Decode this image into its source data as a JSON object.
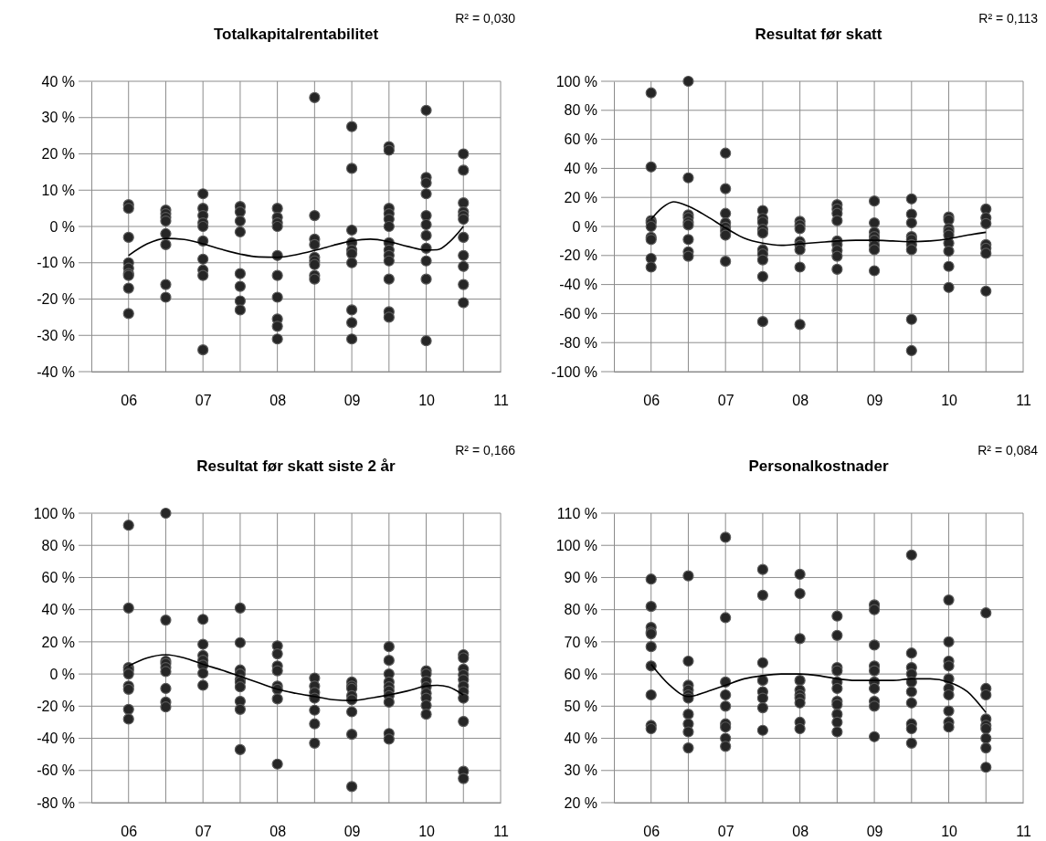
{
  "chart_data": [
    {
      "type": "scatter",
      "title": "Totalkapitalrentabilitet",
      "annotations": [
        "R² = 0,030"
      ],
      "xlim": [
        5.5,
        11
      ],
      "xticks": [
        {
          "value": 6,
          "label": "06"
        },
        {
          "value": 6.5,
          "label": null
        },
        {
          "value": 7,
          "label": "07"
        },
        {
          "value": 7.5,
          "label": null
        },
        {
          "value": 8,
          "label": "08"
        },
        {
          "value": 8.5,
          "label": null
        },
        {
          "value": 9,
          "label": "09"
        },
        {
          "value": 9.5,
          "label": null
        },
        {
          "value": 10,
          "label": "10"
        },
        {
          "value": 10.5,
          "label": null
        },
        {
          "value": 11,
          "label": "11"
        }
      ],
      "ylim": [
        -40,
        40
      ],
      "yticks": [
        {
          "value": -40,
          "label": "-40 %"
        },
        {
          "value": -30,
          "label": "-30 %"
        },
        {
          "value": -20,
          "label": "-20 %"
        },
        {
          "value": -10,
          "label": "-10 %"
        },
        {
          "value": 0,
          "label": "0 %"
        },
        {
          "value": 10,
          "label": "10 %"
        },
        {
          "value": 20,
          "label": "20 %"
        },
        {
          "value": 30,
          "label": "30 %"
        },
        {
          "value": 40,
          "label": "40 %"
        }
      ],
      "grid": true,
      "series": [
        {
          "marker": "circle",
          "color": "#262626",
          "x": [
            6,
            6,
            6,
            6,
            6,
            6,
            6,
            6,
            6,
            6.5,
            6.5,
            6.5,
            6.5,
            6.5,
            6.5,
            6.5,
            6.5,
            7,
            7,
            7,
            7,
            7,
            7,
            7,
            7,
            7,
            7,
            7.5,
            7.5,
            7.5,
            7.5,
            7.5,
            7.5,
            7.5,
            7.5,
            8,
            8,
            8,
            8,
            8,
            8,
            8,
            8,
            8,
            8,
            8.5,
            8.5,
            8.5,
            8.5,
            8.5,
            8.5,
            8.5,
            8.5,
            8.5,
            9,
            9,
            9,
            9,
            9,
            9,
            9,
            9,
            9,
            9,
            9.5,
            9.5,
            9.5,
            9.5,
            9.5,
            9.5,
            9.5,
            9.5,
            9.5,
            9.5,
            9.5,
            9.5,
            9.5,
            10,
            10,
            10,
            10,
            10,
            10,
            10,
            10,
            10,
            10,
            10,
            10.5,
            10.5,
            10.5,
            10.5,
            10.5,
            10.5,
            10.5,
            10.5,
            10.5,
            10.5,
            10.5
          ],
          "values": [
            6,
            5,
            -3,
            -10,
            -11.5,
            -13,
            -13.5,
            -17,
            -24,
            4.5,
            3.5,
            2.5,
            1.5,
            -2,
            -5,
            -16,
            -19.5,
            9,
            5,
            3,
            1,
            0,
            -4,
            -9,
            -12,
            -13.5,
            -34,
            5.5,
            4,
            1.5,
            -1.5,
            -13,
            -16.5,
            -20.5,
            -23,
            5,
            2.5,
            1,
            0,
            -8,
            -13.5,
            -19.5,
            -25.5,
            -27.5,
            -31,
            35.5,
            3,
            -3.5,
            -5,
            -8.5,
            -9.5,
            -10.5,
            -13.5,
            -14.5,
            27.5,
            16,
            -1,
            -4.5,
            -6.5,
            -7.5,
            -10,
            -23,
            -26.5,
            -31,
            22,
            21,
            5,
            3.5,
            2,
            0,
            -4.5,
            -6.5,
            -8,
            -9.5,
            -14.5,
            -23.5,
            -25,
            32,
            13.5,
            12,
            9,
            3,
            0.5,
            -2.5,
            -6,
            -9.5,
            -14.5,
            -31.5,
            20,
            15.5,
            6.5,
            4,
            3,
            2,
            -3,
            -8,
            -11,
            -16,
            -21
          ]
        },
        {
          "type": "line",
          "color": "#000000",
          "line_style": "solid",
          "x": [
            6,
            6.25,
            6.5,
            6.75,
            7,
            7.25,
            7.5,
            7.75,
            8,
            8.25,
            8.5,
            8.75,
            9,
            9.25,
            9.5,
            9.75,
            10,
            10.15,
            10.3,
            10.5
          ],
          "values": [
            -8,
            -4.8,
            -3.3,
            -3.6,
            -4.8,
            -6.3,
            -7.6,
            -8.4,
            -8.5,
            -7.8,
            -6.6,
            -5.2,
            -4,
            -3.5,
            -4.2,
            -5.5,
            -6.5,
            -6.4,
            -4.5,
            0
          ]
        }
      ]
    },
    {
      "type": "scatter",
      "title": "Resultat før skatt",
      "annotations": [
        "R² = 0,113"
      ],
      "xlim": [
        5.5,
        11
      ],
      "xticks": [
        {
          "value": 6,
          "label": "06"
        },
        {
          "value": 6.5,
          "label": null
        },
        {
          "value": 7,
          "label": "07"
        },
        {
          "value": 7.5,
          "label": null
        },
        {
          "value": 8,
          "label": "08"
        },
        {
          "value": 8.5,
          "label": null
        },
        {
          "value": 9,
          "label": "09"
        },
        {
          "value": 9.5,
          "label": null
        },
        {
          "value": 10,
          "label": "10"
        },
        {
          "value": 10.5,
          "label": null
        },
        {
          "value": 11,
          "label": "11"
        }
      ],
      "ylim": [
        -100,
        100
      ],
      "yticks": [
        {
          "value": -100,
          "label": "-100 %"
        },
        {
          "value": -80,
          "label": "-80 %"
        },
        {
          "value": -60,
          "label": "-60 %"
        },
        {
          "value": -40,
          "label": "-40 %"
        },
        {
          "value": -20,
          "label": "-20 %"
        },
        {
          "value": 0,
          "label": "0 %"
        },
        {
          "value": 20,
          "label": "20 %"
        },
        {
          "value": 40,
          "label": "40 %"
        },
        {
          "value": 60,
          "label": "60 %"
        },
        {
          "value": 80,
          "label": "80 %"
        },
        {
          "value": 100,
          "label": "100 %"
        }
      ],
      "grid": true,
      "series": [
        {
          "marker": "circle",
          "color": "#262626",
          "x": [
            6,
            6,
            6,
            6,
            6,
            6,
            6,
            6,
            6,
            6.5,
            6.5,
            6.5,
            6.5,
            6.5,
            6.5,
            6.5,
            6.5,
            6.5,
            7,
            7,
            7,
            7,
            7,
            7,
            7,
            7,
            7.5,
            7.5,
            7.5,
            7.5,
            7.5,
            7.5,
            7.5,
            7.5,
            7.5,
            7.5,
            8,
            8,
            8,
            8,
            8,
            8,
            8,
            8,
            8.5,
            8.5,
            8.5,
            8.5,
            8.5,
            8.5,
            8.5,
            8.5,
            8.5,
            9,
            9,
            9,
            9,
            9,
            9,
            9,
            9,
            9.5,
            9.5,
            9.5,
            9.5,
            9.5,
            9.5,
            9.5,
            9.5,
            9.5,
            10,
            10,
            10,
            10,
            10,
            10,
            10,
            10,
            10,
            10.5,
            10.5,
            10.5,
            10.5,
            10.5,
            10.5,
            10.5
          ],
          "values": [
            92,
            41,
            4,
            2.5,
            0,
            -7.5,
            -9,
            -22,
            -28,
            100,
            33.5,
            8,
            6,
            3,
            1,
            -9,
            -17.5,
            -20.5,
            50.5,
            26,
            9,
            2.5,
            -0.5,
            -3,
            -6,
            -24,
            11,
            5.5,
            3,
            -2,
            -4.5,
            -16,
            -19,
            -23,
            -34.5,
            -65.5,
            3.5,
            1,
            -1.5,
            -10.5,
            -13,
            -16,
            -28,
            -67.5,
            15,
            12,
            9,
            4,
            -10,
            -12.5,
            -16.5,
            -20.5,
            -29.5,
            17.5,
            2.5,
            -4,
            -7,
            -9.5,
            -13,
            -16,
            -30.5,
            19,
            8.5,
            2.5,
            -7,
            -9,
            -12.5,
            -16,
            -64,
            -85.5,
            6.5,
            4.5,
            -1.5,
            -3.5,
            -6,
            -11.5,
            -17,
            -27.5,
            -42,
            12,
            6,
            2,
            -12.5,
            -15,
            -18.5,
            -44.5
          ]
        },
        {
          "type": "line",
          "color": "#000000",
          "line_style": "solid",
          "x": [
            6,
            6.15,
            6.3,
            6.5,
            6.75,
            7,
            7.25,
            7.5,
            7.75,
            8,
            8.25,
            8.5,
            8.75,
            9,
            9.25,
            9.5,
            9.75,
            10,
            10.25,
            10.5
          ],
          "values": [
            5,
            13,
            17,
            14,
            7,
            -1,
            -8,
            -11.5,
            -13,
            -12,
            -11,
            -10,
            -9.5,
            -9.5,
            -10,
            -10.5,
            -10,
            -8.5,
            -6,
            -4
          ]
        }
      ]
    },
    {
      "type": "scatter",
      "title": "Resultat før skatt siste 2 år",
      "annotations": [
        "R² = 0,166"
      ],
      "xlim": [
        5.5,
        11
      ],
      "xticks": [
        {
          "value": 6,
          "label": "06"
        },
        {
          "value": 6.5,
          "label": null
        },
        {
          "value": 7,
          "label": "07"
        },
        {
          "value": 7.5,
          "label": null
        },
        {
          "value": 8,
          "label": "08"
        },
        {
          "value": 8.5,
          "label": null
        },
        {
          "value": 9,
          "label": "09"
        },
        {
          "value": 9.5,
          "label": null
        },
        {
          "value": 10,
          "label": "10"
        },
        {
          "value": 10.5,
          "label": null
        },
        {
          "value": 11,
          "label": "11"
        }
      ],
      "ylim": [
        -80,
        100
      ],
      "yticks": [
        {
          "value": -80,
          "label": "-80 %"
        },
        {
          "value": -60,
          "label": "-60 %"
        },
        {
          "value": -40,
          "label": "-40 %"
        },
        {
          "value": -20,
          "label": "-20 %"
        },
        {
          "value": 0,
          "label": "0 %"
        },
        {
          "value": 20,
          "label": "20 %"
        },
        {
          "value": 40,
          "label": "40 %"
        },
        {
          "value": 60,
          "label": "60 %"
        },
        {
          "value": 80,
          "label": "80 %"
        },
        {
          "value": 100,
          "label": "100 %"
        }
      ],
      "grid": true,
      "series": [
        {
          "marker": "circle",
          "color": "#262626",
          "x": [
            6,
            6,
            6,
            6,
            6,
            6,
            6,
            6,
            6,
            6.5,
            6.5,
            6.5,
            6.5,
            6.5,
            6.5,
            6.5,
            6.5,
            6.5,
            7,
            7,
            7,
            7,
            7,
            7,
            7,
            7.5,
            7.5,
            7.5,
            7.5,
            7.5,
            7.5,
            7.5,
            7.5,
            7.5,
            7.5,
            8,
            8,
            8,
            8,
            8,
            8,
            8,
            8,
            8.5,
            8.5,
            8.5,
            8.5,
            8.5,
            8.5,
            8.5,
            9,
            9,
            9,
            9,
            9,
            9,
            9,
            9,
            9.5,
            9.5,
            9.5,
            9.5,
            9.5,
            9.5,
            9.5,
            9.5,
            9.5,
            9.5,
            10,
            10,
            10,
            10,
            10,
            10,
            10,
            10,
            10.5,
            10.5,
            10.5,
            10.5,
            10.5,
            10.5,
            10.5,
            10.5,
            10.5,
            10.5,
            10.5
          ],
          "values": [
            92.5,
            41,
            4,
            2.5,
            0,
            -7.5,
            -9.5,
            -22,
            -28,
            100,
            33.5,
            8,
            6.5,
            4,
            1.5,
            -9,
            -17.5,
            -20.5,
            34,
            18.5,
            11.5,
            8.5,
            5.5,
            0.5,
            -7,
            41,
            19.5,
            2.5,
            0,
            -3.5,
            -5,
            -8,
            -17,
            -22,
            -47,
            17.5,
            12.5,
            5,
            2,
            -7.5,
            -9.5,
            -15.5,
            -56,
            -2.5,
            -7.5,
            -11.5,
            -15,
            -22.5,
            -31,
            -43,
            -5,
            -7.5,
            -9,
            -13.5,
            -16,
            -23.5,
            -37.5,
            -70,
            17,
            8.5,
            0,
            -5,
            -8,
            -10.5,
            -13.5,
            -17.5,
            -37,
            -40.5,
            2,
            0,
            -4.5,
            -8,
            -12,
            -15,
            -19.5,
            -25,
            12,
            10,
            3,
            -0.5,
            -3.5,
            -7.5,
            -11,
            -15,
            -29.5,
            -60.5,
            -65
          ]
        },
        {
          "type": "line",
          "color": "#000000",
          "line_style": "solid",
          "x": [
            6,
            6.25,
            6.5,
            6.75,
            7,
            7.25,
            7.5,
            7.75,
            8,
            8.25,
            8.5,
            8.75,
            9,
            9.25,
            9.5,
            9.75,
            10,
            10.15,
            10.3,
            10.5
          ],
          "values": [
            5,
            10,
            12,
            10,
            6,
            2.5,
            -1.5,
            -5.5,
            -9.5,
            -12,
            -14,
            -16,
            -16.5,
            -15,
            -13,
            -10.5,
            -7.5,
            -7,
            -8,
            -13
          ]
        }
      ]
    },
    {
      "type": "scatter",
      "title": "Personalkostnader",
      "annotations": [
        "R² = 0,084"
      ],
      "xlim": [
        5.5,
        11
      ],
      "xticks": [
        {
          "value": 6,
          "label": "06"
        },
        {
          "value": 6.5,
          "label": null
        },
        {
          "value": 7,
          "label": "07"
        },
        {
          "value": 7.5,
          "label": null
        },
        {
          "value": 8,
          "label": "08"
        },
        {
          "value": 8.5,
          "label": null
        },
        {
          "value": 9,
          "label": "09"
        },
        {
          "value": 9.5,
          "label": null
        },
        {
          "value": 10,
          "label": "10"
        },
        {
          "value": 10.5,
          "label": null
        },
        {
          "value": 11,
          "label": "11"
        }
      ],
      "ylim": [
        20,
        110
      ],
      "yticks": [
        {
          "value": 20,
          "label": "20 %"
        },
        {
          "value": 30,
          "label": "30 %"
        },
        {
          "value": 40,
          "label": "40 %"
        },
        {
          "value": 50,
          "label": "50 %"
        },
        {
          "value": 60,
          "label": "60 %"
        },
        {
          "value": 70,
          "label": "70 %"
        },
        {
          "value": 80,
          "label": "80 %"
        },
        {
          "value": 90,
          "label": "90 %"
        },
        {
          "value": 100,
          "label": "100 %"
        },
        {
          "value": 110,
          "label": "110 %"
        }
      ],
      "grid": true,
      "series": [
        {
          "marker": "circle",
          "color": "#262626",
          "x": [
            6,
            6,
            6,
            6,
            6,
            6,
            6,
            6,
            6,
            6,
            6.5,
            6.5,
            6.5,
            6.5,
            6.5,
            6.5,
            6.5,
            6.5,
            6.5,
            6.5,
            7,
            7,
            7,
            7,
            7,
            7,
            7,
            7,
            7,
            7.5,
            7.5,
            7.5,
            7.5,
            7.5,
            7.5,
            7.5,
            7.5,
            8,
            8,
            8,
            8,
            8,
            8,
            8,
            8,
            8,
            8,
            8.5,
            8.5,
            8.5,
            8.5,
            8.5,
            8.5,
            8.5,
            8.5,
            8.5,
            8.5,
            8.5,
            9,
            9,
            9,
            9,
            9,
            9,
            9,
            9,
            9,
            9,
            9.5,
            9.5,
            9.5,
            9.5,
            9.5,
            9.5,
            9.5,
            9.5,
            9.5,
            9.5,
            10,
            10,
            10,
            10,
            10,
            10,
            10,
            10,
            10,
            10,
            10.5,
            10.5,
            10.5,
            10.5,
            10.5,
            10.5,
            10.5,
            10.5,
            10.5
          ],
          "values": [
            89.5,
            81,
            74.5,
            73,
            72.5,
            68.5,
            62.5,
            53.5,
            44,
            43,
            90.5,
            64,
            56.5,
            55,
            53.5,
            52.5,
            47.5,
            44.5,
            42,
            37,
            102.5,
            77.5,
            57.5,
            53.5,
            50,
            44.5,
            43.5,
            40,
            37.5,
            92.5,
            84.5,
            63.5,
            58,
            54.5,
            52.5,
            49.5,
            42.5,
            91,
            85,
            71,
            58,
            55,
            53.5,
            52.5,
            51,
            45,
            43,
            78,
            72,
            62,
            61,
            57.5,
            55.5,
            51.5,
            50.5,
            47.5,
            45,
            42,
            81.5,
            80,
            69,
            62.5,
            61,
            57.5,
            55.5,
            51.5,
            50,
            40.5,
            97,
            66.5,
            62,
            60,
            57.5,
            54.5,
            51,
            44.5,
            43,
            38.5,
            83,
            70,
            64,
            62.5,
            58.5,
            55.5,
            53.5,
            48.5,
            45,
            43.5,
            79,
            55.5,
            53.5,
            46,
            44,
            43,
            40,
            37,
            31
          ]
        },
        {
          "type": "line",
          "color": "#000000",
          "line_style": "solid",
          "x": [
            6,
            6.25,
            6.5,
            6.75,
            7,
            7.25,
            7.5,
            7.75,
            8,
            8.25,
            8.5,
            8.75,
            9,
            9.25,
            9.5,
            9.75,
            10,
            10.25,
            10.5
          ],
          "values": [
            63,
            56.5,
            53,
            54.5,
            56.5,
            58.5,
            59.5,
            60,
            60,
            59.5,
            58.5,
            58,
            58,
            58,
            58.5,
            58.5,
            57.5,
            54.5,
            48
          ]
        }
      ]
    }
  ]
}
